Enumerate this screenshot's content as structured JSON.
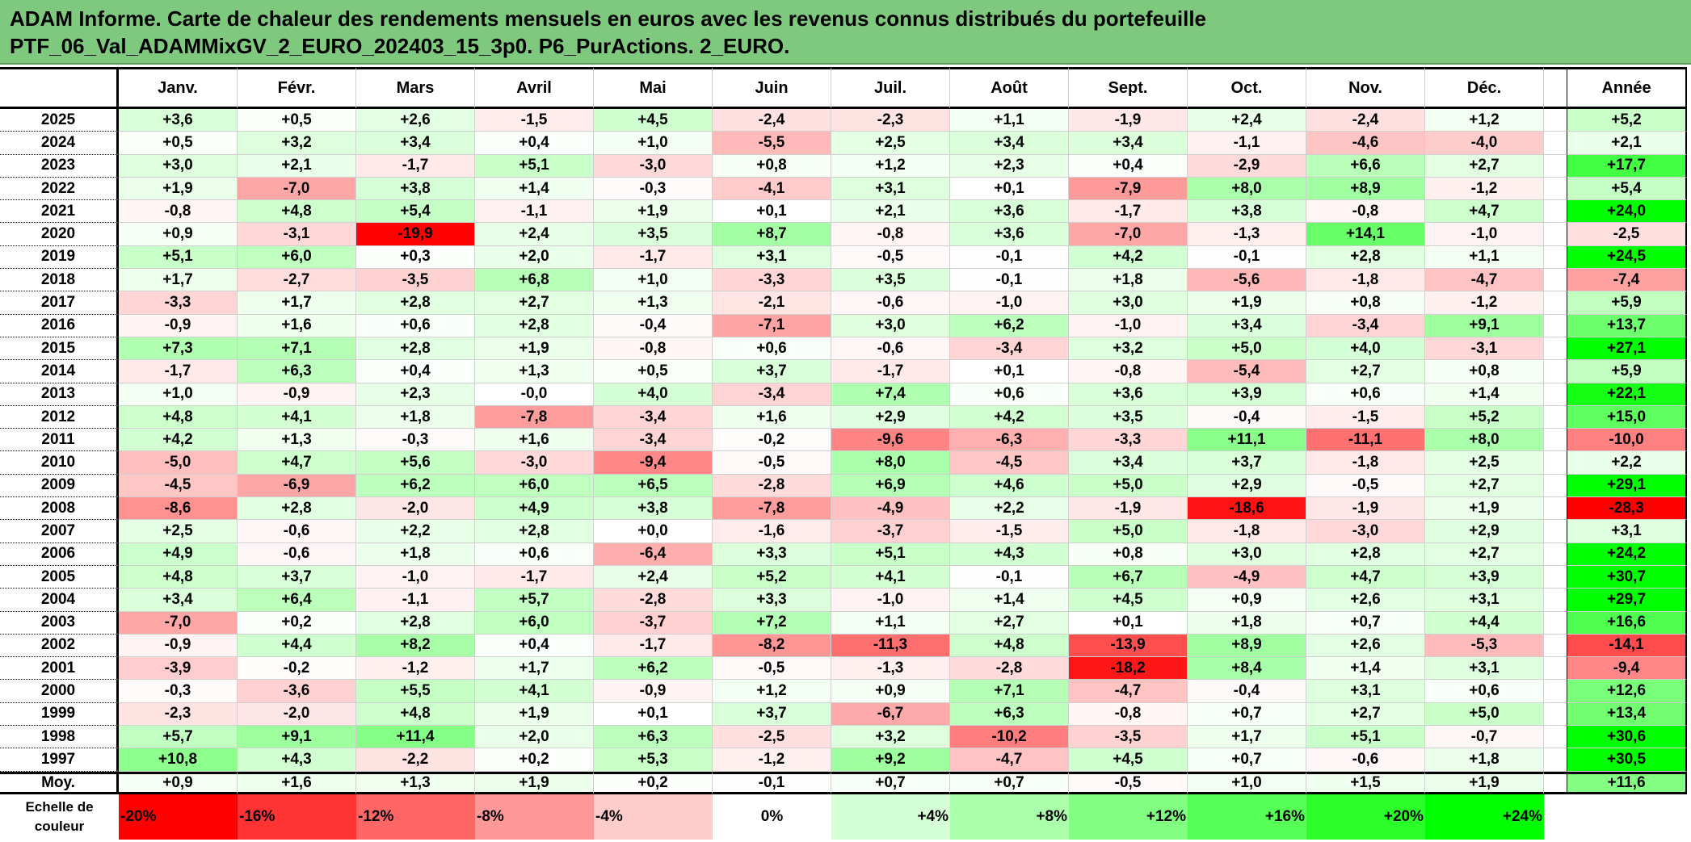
{
  "title": {
    "line1": "ADAM Informe. Carte de chaleur des rendements mensuels en euros avec les revenus connus distribués du portefeuille",
    "line2": "PTF_06_Val_ADAMMixGV_2_EURO_202403_15_3p0. P6_PurActions. 2_EURO."
  },
  "chart_data": {
    "type": "heatmap",
    "title": "ADAM Informe. Carte de chaleur des rendements mensuels en euros avec les revenus connus distribués du portefeuille PTF_06_Val_ADAMMixGV_2_EURO_202403_15_3p0. P6_PurActions. 2_EURO.",
    "columns": [
      "Janv.",
      "Févr.",
      "Mars",
      "Avril",
      "Mai",
      "Juin",
      "Juil.",
      "Août",
      "Sept.",
      "Oct.",
      "Nov.",
      "Déc."
    ],
    "year_column": "Année",
    "rows": [
      {
        "label": "2025",
        "values": [
          "+3,6",
          "+0,5",
          "+2,6",
          "-1,5",
          "+4,5",
          "-2,4",
          "-2,3",
          "+1,1",
          "-1,9",
          "+2,4",
          "-2,4",
          "+1,2"
        ],
        "year": "+5,2"
      },
      {
        "label": "2024",
        "values": [
          "+0,5",
          "+3,2",
          "+3,4",
          "+0,4",
          "+1,0",
          "-5,5",
          "+2,5",
          "+3,4",
          "+3,4",
          "-1,1",
          "-4,6",
          "-4,0"
        ],
        "year": "+2,1"
      },
      {
        "label": "2023",
        "values": [
          "+3,0",
          "+2,1",
          "-1,7",
          "+5,1",
          "-3,0",
          "+0,8",
          "+1,2",
          "+2,3",
          "+0,4",
          "-2,9",
          "+6,6",
          "+2,7"
        ],
        "year": "+17,7"
      },
      {
        "label": "2022",
        "values": [
          "+1,9",
          "-7,0",
          "+3,8",
          "+1,4",
          "-0,3",
          "-4,1",
          "+3,1",
          "+0,1",
          "-7,9",
          "+8,0",
          "+8,9",
          "-1,2"
        ],
        "year": "+5,4"
      },
      {
        "label": "2021",
        "values": [
          "-0,8",
          "+4,8",
          "+5,4",
          "-1,1",
          "+1,9",
          "+0,1",
          "+2,1",
          "+3,6",
          "-1,7",
          "+3,8",
          "-0,8",
          "+4,7"
        ],
        "year": "+24,0"
      },
      {
        "label": "2020",
        "values": [
          "+0,9",
          "-3,1",
          "-19,9",
          "+2,4",
          "+3,5",
          "+8,7",
          "-0,8",
          "+3,6",
          "-7,0",
          "-1,3",
          "+14,1",
          "-1,0"
        ],
        "year": "-2,5"
      },
      {
        "label": "2019",
        "values": [
          "+5,1",
          "+6,0",
          "+0,3",
          "+2,0",
          "-1,7",
          "+3,1",
          "-0,5",
          "-0,1",
          "+4,2",
          "-0,1",
          "+2,8",
          "+1,1"
        ],
        "year": "+24,5"
      },
      {
        "label": "2018",
        "values": [
          "+1,7",
          "-2,7",
          "-3,5",
          "+6,8",
          "+1,0",
          "-3,3",
          "+3,5",
          "-0,1",
          "+1,8",
          "-5,6",
          "-1,8",
          "-4,7"
        ],
        "year": "-7,4"
      },
      {
        "label": "2017",
        "values": [
          "-3,3",
          "+1,7",
          "+2,8",
          "+2,7",
          "+1,3",
          "-2,1",
          "-0,6",
          "-1,0",
          "+3,0",
          "+1,9",
          "+0,8",
          "-1,2"
        ],
        "year": "+5,9"
      },
      {
        "label": "2016",
        "values": [
          "-0,9",
          "+1,6",
          "+0,6",
          "+2,8",
          "-0,4",
          "-7,1",
          "+3,0",
          "+6,2",
          "-1,0",
          "+3,4",
          "-3,4",
          "+9,1"
        ],
        "year": "+13,7"
      },
      {
        "label": "2015",
        "values": [
          "+7,3",
          "+7,1",
          "+2,8",
          "+1,9",
          "-0,8",
          "+0,6",
          "-0,6",
          "-3,4",
          "+3,2",
          "+5,0",
          "+4,0",
          "-3,1"
        ],
        "year": "+27,1"
      },
      {
        "label": "2014",
        "values": [
          "-1,7",
          "+6,3",
          "+0,4",
          "+1,3",
          "+0,5",
          "+3,7",
          "-1,7",
          "+0,1",
          "-0,8",
          "-5,4",
          "+2,7",
          "+0,8"
        ],
        "year": "+5,9"
      },
      {
        "label": "2013",
        "values": [
          "+1,0",
          "-0,9",
          "+2,3",
          "-0,0",
          "+4,0",
          "-3,4",
          "+7,4",
          "+0,6",
          "+3,6",
          "+3,9",
          "+0,6",
          "+1,4"
        ],
        "year": "+22,1"
      },
      {
        "label": "2012",
        "values": [
          "+4,8",
          "+4,1",
          "+1,8",
          "-7,8",
          "-3,4",
          "+1,6",
          "+2,9",
          "+4,2",
          "+3,5",
          "-0,4",
          "-1,5",
          "+5,2"
        ],
        "year": "+15,0"
      },
      {
        "label": "2011",
        "values": [
          "+4,2",
          "+1,3",
          "-0,3",
          "+1,6",
          "-3,4",
          "-0,2",
          "-9,6",
          "-6,3",
          "-3,3",
          "+11,1",
          "-11,1",
          "+8,0"
        ],
        "year": "-10,0"
      },
      {
        "label": "2010",
        "values": [
          "-5,0",
          "+4,7",
          "+5,6",
          "-3,0",
          "-9,4",
          "-0,5",
          "+8,0",
          "-4,5",
          "+3,4",
          "+3,7",
          "-1,8",
          "+2,5"
        ],
        "year": "+2,2"
      },
      {
        "label": "2009",
        "values": [
          "-4,5",
          "-6,9",
          "+6,2",
          "+6,0",
          "+6,5",
          "-2,8",
          "+6,9",
          "+4,6",
          "+5,0",
          "+2,9",
          "-0,5",
          "+2,7"
        ],
        "year": "+29,1"
      },
      {
        "label": "2008",
        "values": [
          "-8,6",
          "+2,8",
          "-2,0",
          "+4,9",
          "+3,8",
          "-7,8",
          "-4,9",
          "+2,2",
          "-1,9",
          "-18,6",
          "-1,9",
          "+1,9"
        ],
        "year": "-28,3"
      },
      {
        "label": "2007",
        "values": [
          "+2,5",
          "-0,6",
          "+2,2",
          "+2,8",
          "+0,0",
          "-1,6",
          "-3,7",
          "-1,5",
          "+5,0",
          "-1,8",
          "-3,0",
          "+2,9"
        ],
        "year": "+3,1"
      },
      {
        "label": "2006",
        "values": [
          "+4,9",
          "-0,6",
          "+1,8",
          "+0,6",
          "-6,4",
          "+3,3",
          "+5,1",
          "+4,3",
          "+0,8",
          "+3,0",
          "+2,8",
          "+2,7"
        ],
        "year": "+24,2"
      },
      {
        "label": "2005",
        "values": [
          "+4,8",
          "+3,7",
          "-1,0",
          "-1,7",
          "+2,4",
          "+5,2",
          "+4,1",
          "-0,1",
          "+6,7",
          "-4,9",
          "+4,7",
          "+3,9"
        ],
        "year": "+30,7"
      },
      {
        "label": "2004",
        "values": [
          "+3,4",
          "+6,4",
          "-1,1",
          "+5,7",
          "-2,8",
          "+3,3",
          "-1,0",
          "+1,4",
          "+4,5",
          "+0,9",
          "+2,6",
          "+3,1"
        ],
        "year": "+29,7"
      },
      {
        "label": "2003",
        "values": [
          "-7,0",
          "+0,2",
          "+2,8",
          "+6,0",
          "-3,7",
          "+7,2",
          "+1,1",
          "+2,7",
          "+0,1",
          "+1,8",
          "+0,7",
          "+4,4"
        ],
        "year": "+16,6"
      },
      {
        "label": "2002",
        "values": [
          "-0,9",
          "+4,4",
          "+8,2",
          "+0,4",
          "-1,7",
          "-8,2",
          "-11,3",
          "+4,8",
          "-13,9",
          "+8,9",
          "+2,6",
          "-5,3"
        ],
        "year": "-14,1"
      },
      {
        "label": "2001",
        "values": [
          "-3,9",
          "-0,2",
          "-1,2",
          "+1,7",
          "+6,2",
          "-0,5",
          "-1,3",
          "-2,8",
          "-18,2",
          "+8,4",
          "+1,4",
          "+3,1"
        ],
        "year": "-9,4"
      },
      {
        "label": "2000",
        "values": [
          "-0,3",
          "-3,6",
          "+5,5",
          "+4,1",
          "-0,9",
          "+1,2",
          "+0,9",
          "+7,1",
          "-4,7",
          "-0,4",
          "+3,1",
          "+0,6"
        ],
        "year": "+12,6"
      },
      {
        "label": "1999",
        "values": [
          "-2,3",
          "-2,0",
          "+4,8",
          "+1,9",
          "+0,1",
          "+3,7",
          "-6,7",
          "+6,3",
          "-0,8",
          "+0,7",
          "+2,7",
          "+5,0"
        ],
        "year": "+13,4"
      },
      {
        "label": "1998",
        "values": [
          "+5,7",
          "+9,1",
          "+11,4",
          "+2,0",
          "+6,3",
          "-2,5",
          "+3,2",
          "-10,2",
          "-3,5",
          "+1,7",
          "+5,1",
          "-0,7"
        ],
        "year": "+30,6"
      },
      {
        "label": "1997",
        "values": [
          "+10,8",
          "+4,3",
          "-2,2",
          "+0,2",
          "+5,3",
          "-1,2",
          "+9,2",
          "-4,7",
          "+4,5",
          "+0,7",
          "-0,6",
          "+1,8"
        ],
        "year": "+30,5"
      }
    ],
    "average": {
      "label": "Moy.",
      "values": [
        "+0,9",
        "+1,6",
        "+1,3",
        "+1,9",
        "+0,2",
        "-0,1",
        "+0,7",
        "+0,7",
        "-0,5",
        "+1,0",
        "+1,5",
        "+1,9"
      ],
      "year": "+11,6"
    },
    "legend": {
      "label_line1": "Echelle de",
      "label_line2": "couleur",
      "steps": [
        "-20%",
        "-16%",
        "-12%",
        "-8%",
        "-4%",
        "0%",
        "+4%",
        "+8%",
        "+12%",
        "+16%",
        "+20%",
        "+24%"
      ],
      "step_values": [
        -20,
        -16,
        -12,
        -8,
        -4,
        0,
        4,
        8,
        12,
        16,
        20,
        24
      ],
      "neg_color": "#ff0000",
      "pos_color": "#00ff00",
      "neutral_color": "#ffffff",
      "range": [
        -20,
        24
      ]
    }
  }
}
